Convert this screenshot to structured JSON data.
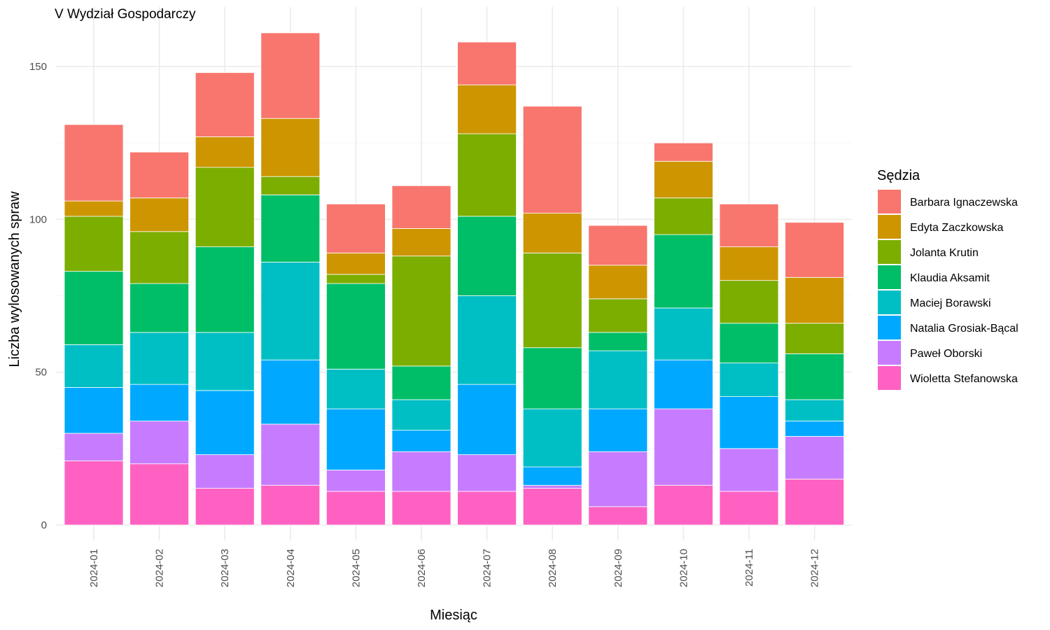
{
  "chart_data": {
    "type": "bar",
    "stacked": true,
    "title": "V Wydział Gospodarczy",
    "xlabel": "Miesiąc",
    "ylabel": "Liczba wylosowanych spraw",
    "ylim": [
      0,
      160
    ],
    "yticks": [
      0,
      50,
      100,
      150
    ],
    "grid": true,
    "legend_position": "right",
    "legend_title": "Sędzia",
    "categories": [
      "2024-01",
      "2024-02",
      "2024-03",
      "2024-04",
      "2024-05",
      "2024-06",
      "2024-07",
      "2024-08",
      "2024-09",
      "2024-10",
      "2024-11",
      "2024-12"
    ],
    "series": [
      {
        "name": "Wioletta Stefanowska",
        "color": "#FF61C3",
        "values": [
          21,
          20,
          12,
          13,
          11,
          11,
          11,
          12,
          6,
          13,
          11,
          15
        ]
      },
      {
        "name": "Paweł Oborski",
        "color": "#C77CFF",
        "values": [
          9,
          14,
          11,
          20,
          7,
          13,
          12,
          1,
          18,
          25,
          14,
          14
        ]
      },
      {
        "name": "Natalia Grosiak-Bącal",
        "color": "#00A9FF",
        "values": [
          15,
          12,
          21,
          21,
          20,
          7,
          23,
          6,
          14,
          16,
          17,
          5
        ]
      },
      {
        "name": "Maciej Borawski",
        "color": "#00BFC4",
        "values": [
          14,
          17,
          19,
          32,
          13,
          10,
          29,
          19,
          19,
          17,
          11,
          7
        ]
      },
      {
        "name": "Klaudia Aksamit",
        "color": "#00BE67",
        "values": [
          24,
          16,
          28,
          22,
          28,
          11,
          26,
          20,
          6,
          24,
          13,
          15
        ]
      },
      {
        "name": "Jolanta Krutin",
        "color": "#7CAE00",
        "values": [
          18,
          17,
          26,
          6,
          3,
          36,
          27,
          31,
          11,
          12,
          14,
          10
        ]
      },
      {
        "name": "Edyta Zaczkowska",
        "color": "#CD9600",
        "values": [
          5,
          11,
          10,
          19,
          7,
          9,
          16,
          13,
          11,
          12,
          11,
          15
        ]
      },
      {
        "name": "Barbara Ignaczewska",
        "color": "#F8766D",
        "values": [
          25,
          15,
          21,
          28,
          16,
          14,
          14,
          35,
          13,
          6,
          14,
          18
        ]
      }
    ],
    "legend_order": [
      "Barbara Ignaczewska",
      "Edyta Zaczkowska",
      "Jolanta Krutin",
      "Klaudia Aksamit",
      "Maciej Borawski",
      "Natalia Grosiak-Bącal",
      "Paweł Oborski",
      "Wioletta Stefanowska"
    ]
  }
}
